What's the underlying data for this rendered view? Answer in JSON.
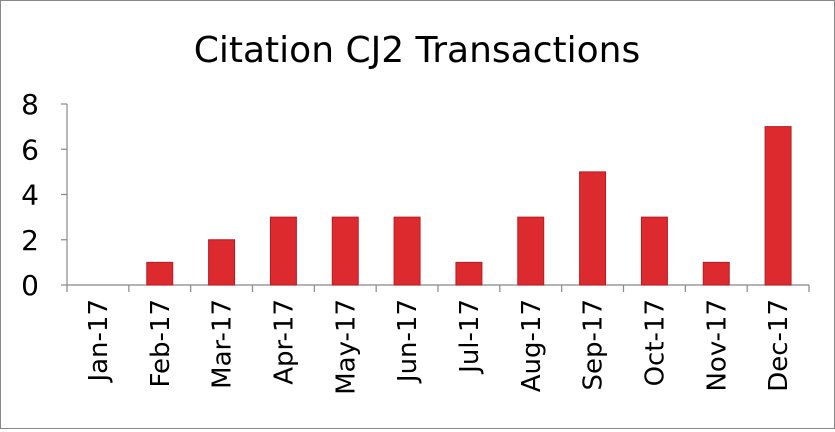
{
  "chart_data": {
    "type": "bar",
    "title": "Citation CJ2 Transactions",
    "xlabel": "",
    "ylabel": "",
    "categories": [
      "Jan-17",
      "Feb-17",
      "Mar-17",
      "Apr-17",
      "May-17",
      "Jun-17",
      "Jul-17",
      "Aug-17",
      "Sep-17",
      "Oct-17",
      "Nov-17",
      "Dec-17"
    ],
    "values": [
      0,
      1,
      2,
      3,
      3,
      3,
      1,
      3,
      5,
      3,
      1,
      7
    ],
    "ylim": [
      0,
      8
    ],
    "yticks": [
      "0",
      "2",
      "4",
      "6",
      "8"
    ],
    "grid": false,
    "legend": "none",
    "bar_color": "#dc2a2f",
    "bar_edge_color": "#b71c22"
  }
}
